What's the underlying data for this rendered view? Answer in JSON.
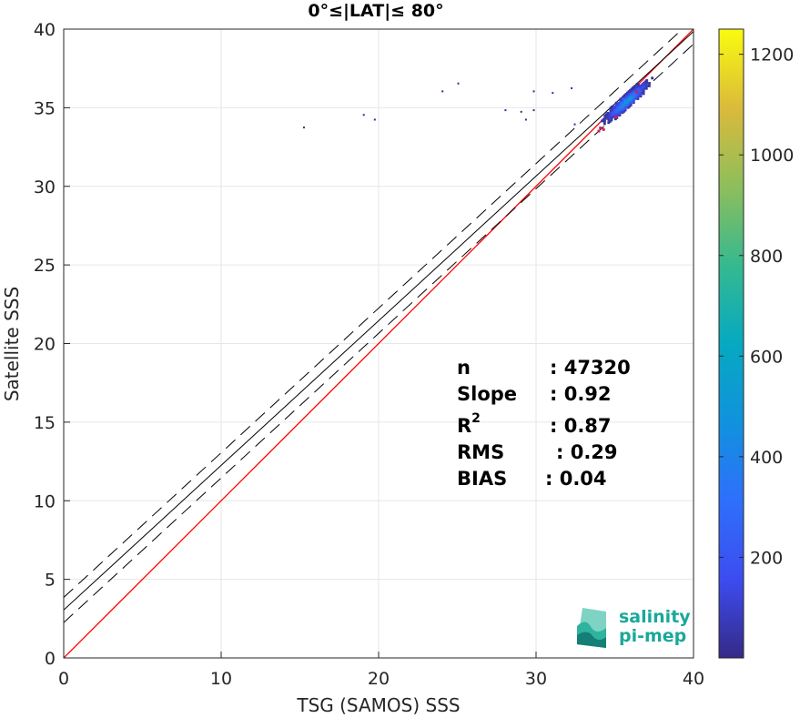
{
  "chart_data": {
    "type": "heatmap",
    "title": "0°≤|LAT|≤ 80°",
    "xlabel": "TSG (SAMOS) SSS",
    "ylabel": "Satellite SSS",
    "xlim": [
      0,
      40
    ],
    "ylim": [
      0,
      40
    ],
    "xticks": [
      "0",
      "10",
      "20",
      "30",
      "40"
    ],
    "yticks": [
      "0",
      "5",
      "10",
      "15",
      "20",
      "25",
      "30",
      "35",
      "40"
    ],
    "grid": true,
    "colorbar": {
      "range": [
        0,
        1250
      ],
      "ticks": [
        "200",
        "400",
        "600",
        "800",
        "1000",
        "1200"
      ],
      "colormap": "parula"
    },
    "identity_line": {
      "color": "#ff0000",
      "from": [
        0,
        0
      ],
      "to": [
        40,
        40
      ]
    },
    "fit_line": {
      "slope": 0.92,
      "intercept": 3.05,
      "color": "#000000"
    },
    "fit_band": {
      "offset": 0.8,
      "style": "dashed"
    },
    "scatter_cells": [
      {
        "x": 15.2,
        "y": 33.7,
        "count": 5
      },
      {
        "x": 19.0,
        "y": 34.5,
        "count": 5
      },
      {
        "x": 19.7,
        "y": 34.2,
        "count": 5
      },
      {
        "x": 24.0,
        "y": 36.0,
        "count": 5
      },
      {
        "x": 25.0,
        "y": 36.5,
        "count": 5
      },
      {
        "x": 28.0,
        "y": 34.8,
        "count": 5
      },
      {
        "x": 29.0,
        "y": 34.7,
        "count": 5
      },
      {
        "x": 29.3,
        "y": 34.2,
        "count": 5
      },
      {
        "x": 29.8,
        "y": 34.8,
        "count": 5
      },
      {
        "x": 29.8,
        "y": 36.0,
        "count": 5
      },
      {
        "x": 31.0,
        "y": 35.9,
        "count": 5
      },
      {
        "x": 32.2,
        "y": 36.2,
        "count": 5
      },
      {
        "x": 32.4,
        "y": 33.9,
        "count": 5
      }
    ],
    "cluster": {
      "x_center": 35.7,
      "y_center": 35.4,
      "count_max": 1250
    },
    "stats": [
      {
        "label": "n",
        "value": ": 47320"
      },
      {
        "label": "Slope",
        "value": ": 0.92"
      },
      {
        "label": "R",
        "label_sup": "2",
        "value": ": 0.87"
      },
      {
        "label": "RMS",
        "value": ": 0.29"
      },
      {
        "label": "BIAS",
        "value": ": 0.04"
      }
    ]
  },
  "logo": {
    "line1": "salinity",
    "line2": "pi-mep"
  }
}
